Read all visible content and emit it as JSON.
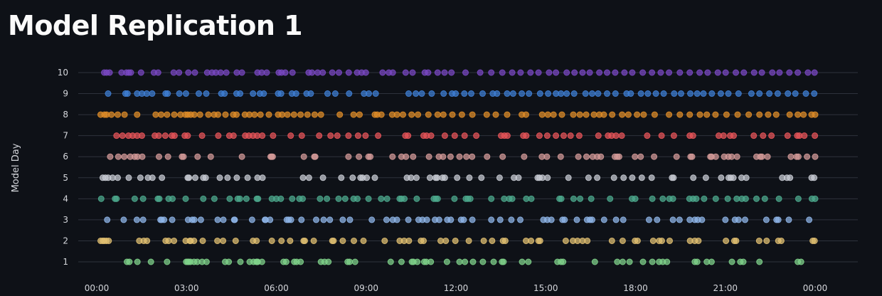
{
  "page": {
    "title": "Model Replication 1"
  },
  "chart_data": {
    "type": "scatter",
    "title": "Model Replication 1",
    "xlabel": "",
    "ylabel": "Model Day",
    "xlim": [
      0,
      24
    ],
    "ylim": [
      0.5,
      10.5
    ],
    "x_ticks": [
      "00:00",
      "03:00",
      "06:00",
      "09:00",
      "12:00",
      "15:00",
      "18:00",
      "21:00",
      "00:00"
    ],
    "y_ticks": [
      "1",
      "2",
      "3",
      "4",
      "5",
      "6",
      "7",
      "8",
      "9",
      "10"
    ],
    "grid": "horizontal",
    "legend": "none",
    "series": [
      {
        "day": 1,
        "color": "#7fd38a",
        "x": [
          1.01,
          1.09,
          1.36,
          1.81,
          2.35,
          2.99,
          3.04,
          3.07,
          3.13,
          3.25,
          3.36,
          3.52,
          3.67,
          4.29,
          4.41,
          4.8,
          5.11,
          5.24,
          5.34,
          5.35,
          5.38,
          5.52,
          6.24,
          6.33,
          6.6,
          6.68,
          6.81,
          7.49,
          7.61,
          7.74,
          8.38,
          8.45,
          8.63,
          9.82,
          10.18,
          10.53,
          10.58,
          10.71,
          10.94,
          11.01,
          11.16,
          11.7,
          12.12,
          12.3,
          12.57,
          12.9,
          13.26,
          13.54,
          13.59,
          14.21,
          14.42,
          15.39,
          15.51,
          15.58,
          16.64,
          17.39,
          17.57,
          17.8,
          18.25,
          18.56,
          18.79,
          18.91,
          19.05,
          19.98,
          20.06,
          20.38,
          20.54,
          21.22,
          21.5,
          21.6,
          22.14,
          23.42,
          23.53
        ]
      },
      {
        "day": 2,
        "color": "#e2c071",
        "x": [
          0.13,
          0.2,
          0.25,
          0.32,
          0.4,
          1.42,
          1.57,
          1.68,
          2.3,
          2.4,
          2.58,
          2.97,
          3.11,
          3.14,
          3.25,
          3.54,
          4.03,
          4.22,
          4.64,
          5.22,
          5.34,
          5.85,
          6.17,
          6.46,
          6.91,
          6.95,
          7.25,
          7.87,
          7.91,
          8.22,
          8.59,
          8.91,
          9.62,
          10.12,
          10.27,
          10.43,
          10.83,
          10.92,
          11.49,
          11.66,
          11.98,
          12.43,
          12.93,
          13.21,
          13.57,
          13.65,
          14.34,
          14.51,
          14.76,
          14.81,
          15.67,
          15.91,
          16.06,
          16.23,
          16.39,
          17.21,
          17.57,
          17.98,
          18.07,
          18.59,
          18.79,
          18.88,
          19.14,
          19.82,
          19.98,
          20.1,
          21.02,
          21.3,
          21.36,
          22.13,
          22.38,
          22.77,
          22.87,
          23.92,
          23.98
        ]
      },
      {
        "day": 3,
        "color": "#8fb5e8",
        "x": [
          0.35,
          0.9,
          1.34,
          1.55,
          2.13,
          2.17,
          2.25,
          2.52,
          3.05,
          3.19,
          3.26,
          3.48,
          4.04,
          4.23,
          4.59,
          4.61,
          5.19,
          5.62,
          5.64,
          5.79,
          6.35,
          6.41,
          6.49,
          6.84,
          7.33,
          7.58,
          7.79,
          8.22,
          8.46,
          9.19,
          9.68,
          9.89,
          10.03,
          10.41,
          10.75,
          10.88,
          11.03,
          11.3,
          11.44,
          11.71,
          11.83,
          12.17,
          12.26,
          12.55,
          13.18,
          13.48,
          13.85,
          14.15,
          14.92,
          15.05,
          15.19,
          15.56,
          15.63,
          16.04,
          16.38,
          16.48,
          16.55,
          16.95,
          17.35,
          17.59,
          18.45,
          18.72,
          19.25,
          19.47,
          19.81,
          19.98,
          20.08,
          20.22,
          21.0,
          21.32,
          21.44,
          21.66,
          22.37,
          22.71,
          22.77,
          23.12,
          23.8
        ]
      },
      {
        "day": 4,
        "color": "#4dab8e",
        "x": [
          0.15,
          0.61,
          0.66,
          1.27,
          1.55,
          2.04,
          2.09,
          2.4,
          2.53,
          2.97,
          3.56,
          3.93,
          4.44,
          4.71,
          4.78,
          5.0,
          5.35,
          5.39,
          5.85,
          6.0,
          6.15,
          6.53,
          6.77,
          6.88,
          7.46,
          7.69,
          8.08,
          8.3,
          8.58,
          8.71,
          9.08,
          9.5,
          9.7,
          10.12,
          10.18,
          10.28,
          10.69,
          11.26,
          11.33,
          11.39,
          11.95,
          12.33,
          12.4,
          12.48,
          13.18,
          13.61,
          13.78,
          13.88,
          14.35,
          14.52,
          15.46,
          15.52,
          15.93,
          16.15,
          16.52,
          17.15,
          17.88,
          17.99,
          18.56,
          18.91,
          19.13,
          19.25,
          19.8,
          19.92,
          20.03,
          20.29,
          20.68,
          21.08,
          21.38,
          21.55,
          21.68,
          22.04,
          22.32,
          22.79,
          23.44,
          23.89,
          24.0
        ]
      },
      {
        "day": 5,
        "color": "#c9ccd4",
        "x": [
          0.2,
          0.29,
          0.38,
          0.53,
          0.7,
          1.07,
          1.46,
          1.71,
          1.86,
          2.18,
          3.04,
          3.08,
          3.29,
          3.56,
          3.64,
          4.11,
          4.37,
          4.68,
          5.04,
          5.37,
          5.54,
          6.89,
          7.09,
          7.56,
          8.17,
          8.55,
          8.81,
          8.88,
          9.02,
          9.29,
          10.36,
          10.5,
          10.68,
          11.13,
          11.32,
          11.37,
          11.55,
          11.63,
          12.04,
          12.45,
          12.85,
          13.46,
          13.94,
          14.09,
          14.73,
          14.79,
          14.89,
          15.06,
          15.76,
          16.43,
          16.72,
          17.28,
          17.6,
          17.89,
          18.21,
          18.54,
          19.22,
          19.27,
          19.93,
          20.35,
          20.86,
          21.11,
          21.18,
          21.27,
          21.54,
          21.7,
          22.9,
          23.06,
          23.16,
          23.88,
          23.97
        ]
      },
      {
        "day": 6,
        "color": "#d49a98",
        "x": [
          0.45,
          0.72,
          0.92,
          1.12,
          1.27,
          1.36,
          1.52,
          2.08,
          2.38,
          2.85,
          2.9,
          3.37,
          3.81,
          4.85,
          5.81,
          5.84,
          5.88,
          6.92,
          7.27,
          7.3,
          8.41,
          8.76,
          9.08,
          9.14,
          9.88,
          10.18,
          10.33,
          10.57,
          11.1,
          11.43,
          11.57,
          11.82,
          12.12,
          12.35,
          12.54,
          13.04,
          13.56,
          14.28,
          14.87,
          15.04,
          15.5,
          16.09,
          16.36,
          16.57,
          16.72,
          16.84,
          17.31,
          17.39,
          17.45,
          17.98,
          18.17,
          18.62,
          19.37,
          19.84,
          19.89,
          20.5,
          20.54,
          20.68,
          20.96,
          21.1,
          21.21,
          21.39,
          22.04,
          22.17,
          22.22,
          22.41,
          23.19,
          23.38,
          23.44,
          23.73,
          24.0
        ]
      },
      {
        "day": 7,
        "color": "#e85459",
        "x": [
          0.66,
          0.86,
          1.06,
          1.2,
          1.35,
          1.51,
          1.94,
          2.07,
          2.29,
          2.51,
          2.6,
          2.94,
          3.04,
          3.52,
          4.06,
          4.43,
          4.57,
          4.96,
          5.08,
          5.22,
          5.36,
          5.53,
          5.89,
          6.48,
          6.85,
          7.43,
          7.81,
          8.04,
          8.41,
          8.73,
          8.98,
          9.4,
          10.31,
          10.4,
          10.92,
          11.02,
          11.17,
          11.63,
          11.96,
          12.29,
          12.68,
          13.51,
          13.62,
          13.72,
          14.25,
          14.35,
          14.79,
          15.05,
          15.34,
          15.6,
          15.83,
          16.12,
          16.76,
          17.08,
          17.2,
          17.35,
          17.54,
          18.39,
          18.87,
          19.28,
          19.81,
          19.92,
          20.78,
          20.94,
          21.16,
          21.28,
          21.95,
          22.26,
          22.54,
          23.08,
          23.4,
          23.47,
          23.64,
          23.99
        ]
      },
      {
        "day": 8,
        "color": "#e08d28",
        "x": [
          0.13,
          0.26,
          0.33,
          0.49,
          0.7,
          0.93,
          1.35,
          1.97,
          2.15,
          2.35,
          2.59,
          2.8,
          2.96,
          3.04,
          3.14,
          3.26,
          3.45,
          3.73,
          3.92,
          4.05,
          4.3,
          4.56,
          4.67,
          4.95,
          5.1,
          5.27,
          5.47,
          5.75,
          6.06,
          6.19,
          6.37,
          6.59,
          6.81,
          7.04,
          7.28,
          7.49,
          8.12,
          8.58,
          8.78,
          9.29,
          9.37,
          9.51,
          9.87,
          10.03,
          10.23,
          10.52,
          10.73,
          11.08,
          11.39,
          11.58,
          11.88,
          12.2,
          12.55,
          13.03,
          13.33,
          13.71,
          14.2,
          14.34,
          14.88,
          15.07,
          15.26,
          15.54,
          15.92,
          16.14,
          16.35,
          16.61,
          16.79,
          16.94,
          17.22,
          17.55,
          17.76,
          18.05,
          18.27,
          18.64,
          19.12,
          19.48,
          19.81,
          20.15,
          20.38,
          20.67,
          21.04,
          21.41,
          21.78,
          22.14,
          22.43,
          22.7,
          23.15,
          23.42,
          23.61,
          23.88,
          24.0
        ]
      },
      {
        "day": 9,
        "color": "#3f7fd6",
        "x": [
          0.38,
          0.96,
          1.03,
          1.35,
          1.51,
          1.67,
          1.85,
          2.3,
          2.37,
          2.76,
          2.98,
          3.41,
          3.66,
          4.16,
          4.27,
          4.67,
          4.79,
          5.22,
          5.45,
          5.58,
          6.06,
          6.16,
          6.52,
          6.66,
          7.01,
          7.15,
          7.71,
          7.97,
          8.43,
          8.93,
          9.09,
          9.32,
          10.42,
          10.66,
          10.86,
          11.19,
          11.59,
          11.87,
          11.99,
          12.28,
          12.51,
          12.89,
          13.23,
          13.37,
          13.71,
          13.91,
          14.2,
          14.44,
          14.81,
          15.08,
          15.34,
          15.51,
          15.7,
          15.95,
          16.33,
          16.55,
          16.75,
          17.05,
          17.33,
          17.7,
          17.84,
          18.18,
          18.41,
          18.68,
          18.94,
          19.29,
          19.52,
          19.83,
          20.06,
          20.27,
          20.55,
          20.85,
          21.1,
          21.44,
          21.87,
          22.14,
          22.47,
          22.75,
          23.09,
          23.34,
          23.69,
          23.97
        ]
      },
      {
        "day": 10,
        "color": "#7a48c4",
        "x": [
          0.25,
          0.33,
          0.43,
          0.83,
          0.99,
          1.07,
          1.14,
          1.48,
          1.91,
          2.05,
          2.57,
          2.75,
          3.06,
          3.28,
          3.69,
          3.85,
          3.98,
          4.14,
          4.33,
          4.68,
          4.85,
          5.37,
          5.51,
          5.68,
          6.08,
          6.17,
          6.3,
          6.54,
          7.08,
          7.19,
          7.38,
          7.55,
          7.87,
          8.09,
          8.42,
          8.7,
          8.85,
          8.99,
          9.55,
          9.76,
          9.89,
          10.32,
          10.55,
          10.96,
          11.07,
          11.39,
          11.62,
          11.85,
          12.32,
          12.81,
          13.18,
          13.55,
          13.88,
          14.16,
          14.49,
          14.76,
          15.11,
          15.34,
          15.7,
          15.96,
          16.23,
          16.47,
          16.79,
          17.05,
          17.32,
          17.63,
          17.89,
          18.24,
          18.55,
          18.84,
          19.12,
          19.48,
          19.81,
          20.14,
          20.41,
          20.75,
          21.01,
          21.35,
          21.62,
          21.96,
          22.22,
          22.57,
          22.81,
          23.14,
          23.42,
          23.76,
          23.98
        ]
      }
    ]
  }
}
